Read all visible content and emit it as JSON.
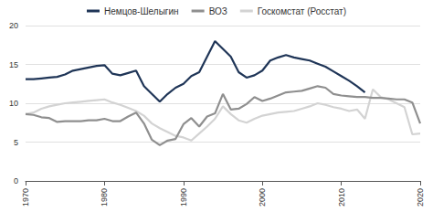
{
  "chart_data": {
    "type": "line",
    "x": [
      1970,
      1971,
      1972,
      1973,
      1974,
      1975,
      1976,
      1977,
      1978,
      1979,
      1980,
      1981,
      1982,
      1983,
      1984,
      1985,
      1986,
      1987,
      1988,
      1989,
      1990,
      1991,
      1992,
      1993,
      1994,
      1995,
      1996,
      1997,
      1998,
      1999,
      2000,
      2001,
      2002,
      2003,
      2004,
      2005,
      2006,
      2007,
      2008,
      2009,
      2010,
      2011,
      2012,
      2013,
      2014,
      2015,
      2016,
      2017,
      2018,
      2019,
      2020
    ],
    "series": [
      {
        "name": "Немцов-Шелыгин",
        "color": "#1f3557",
        "values": [
          13.1,
          13.1,
          13.2,
          13.3,
          13.4,
          13.7,
          14.2,
          14.4,
          14.6,
          14.8,
          14.9,
          13.8,
          13.6,
          13.9,
          14.2,
          12.2,
          11.2,
          10.2,
          11.2,
          12.0,
          12.5,
          13.5,
          14.0,
          16.0,
          18.0,
          17.0,
          16.0,
          14.0,
          13.3,
          13.6,
          14.2,
          15.5,
          15.9,
          16.2,
          15.9,
          15.7,
          15.5,
          15.1,
          14.7,
          14.1,
          13.5,
          12.9,
          12.2,
          11.4,
          null,
          null,
          null,
          null,
          null,
          null,
          null
        ]
      },
      {
        "name": "ВОЗ",
        "color": "#8f8f8f",
        "values": [
          8.6,
          8.5,
          8.2,
          8.1,
          7.6,
          7.7,
          7.7,
          7.7,
          7.8,
          7.8,
          8.0,
          7.7,
          7.7,
          8.3,
          8.8,
          7.4,
          5.3,
          4.6,
          5.2,
          5.4,
          7.3,
          8.1,
          7.0,
          8.3,
          8.7,
          11.2,
          9.2,
          9.3,
          9.9,
          10.8,
          10.3,
          10.6,
          11.0,
          11.4,
          11.5,
          11.6,
          11.9,
          12.2,
          12.0,
          11.2,
          11.0,
          10.9,
          10.8,
          10.8,
          10.7,
          10.7,
          10.6,
          10.5,
          10.5,
          10.1,
          7.4
        ]
      },
      {
        "name": "Госкомстат (Росстат)",
        "color": "#d3d3d3",
        "values": [
          8.6,
          8.8,
          9.3,
          9.6,
          9.8,
          10.0,
          10.1,
          10.2,
          10.3,
          10.4,
          10.5,
          10.1,
          9.8,
          9.4,
          9.0,
          8.4,
          7.4,
          6.8,
          6.3,
          5.8,
          5.6,
          5.2,
          6.1,
          7.0,
          8.0,
          9.6,
          8.6,
          7.8,
          7.5,
          8.0,
          8.4,
          8.6,
          8.8,
          8.9,
          9.0,
          9.3,
          9.6,
          10.0,
          9.8,
          9.5,
          9.3,
          9.0,
          9.2,
          8.0,
          11.8,
          10.8,
          10.5,
          10.0,
          9.5,
          6.0,
          6.1
        ]
      }
    ],
    "xlim": [
      1970,
      2020
    ],
    "xticks": [
      1970,
      1980,
      1990,
      2000,
      2010,
      2020
    ],
    "ylim": [
      0,
      20
    ],
    "yticks": [
      0,
      5,
      10,
      15,
      20
    ],
    "grid": true,
    "legend": "top"
  }
}
